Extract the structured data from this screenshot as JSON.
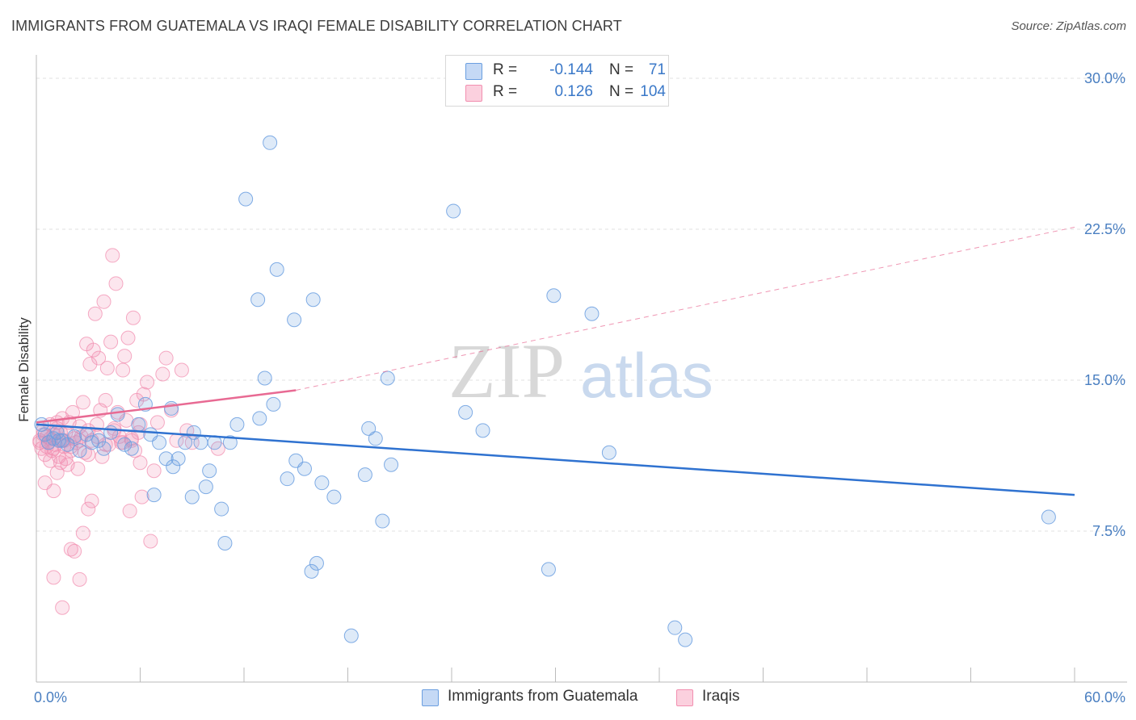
{
  "title": "IMMIGRANTS FROM GUATEMALA VS IRAQI FEMALE DISABILITY CORRELATION CHART",
  "source": "Source: ZipAtlas.com",
  "watermark": {
    "part1": "ZIP",
    "part2": "atlas"
  },
  "legend": {
    "rows": [
      {
        "r_label": "R =",
        "r_value": "-0.144",
        "n_label": "N =",
        "n_value": "71",
        "color": "#6b9fe0"
      },
      {
        "r_label": "R =",
        "r_value": "0.126",
        "n_label": "N =",
        "n_value": "104",
        "color": "#f28fb0"
      }
    ]
  },
  "bottom_legend": {
    "items": [
      {
        "label": "Immigrants from Guatemala",
        "color": "#6b9fe0"
      },
      {
        "label": "Iraqis",
        "color": "#f28fb0"
      }
    ]
  },
  "colors": {
    "blue": "#6b9fe0",
    "blue_line": "#2f72d0",
    "pink": "#f28fb0",
    "pink_line": "#e86a93",
    "axis_text": "#4a7fc1",
    "grid": "#e0e0e0"
  },
  "chart_data": {
    "type": "scatter",
    "ylabel": "Female Disability",
    "xlabel": "",
    "xlim": [
      0,
      60
    ],
    "ylim": [
      0,
      31
    ],
    "x_tick_labels": [
      {
        "value": 0,
        "label": "0.0%"
      },
      {
        "value": 60,
        "label": "60.0%"
      }
    ],
    "y_tick_labels": [
      {
        "value": 7.5,
        "label": "7.5%"
      },
      {
        "value": 15,
        "label": "15.0%"
      },
      {
        "value": 22.5,
        "label": "22.5%"
      },
      {
        "value": 30,
        "label": "30.0%"
      }
    ],
    "grid": true,
    "series": [
      {
        "name": "Immigrants from Guatemala",
        "r": -0.144,
        "n": 71,
        "trend": {
          "x": [
            0,
            60
          ],
          "y": [
            12.8,
            9.3
          ],
          "dashed_extension": false
        },
        "points": [
          [
            0.3,
            12.8
          ],
          [
            0.5,
            12.3
          ],
          [
            0.7,
            11.9
          ],
          [
            1.0,
            12.1
          ],
          [
            1.2,
            12.4
          ],
          [
            1.5,
            12.0
          ],
          [
            1.8,
            11.8
          ],
          [
            2.2,
            12.2
          ],
          [
            2.5,
            11.5
          ],
          [
            2.9,
            12.3
          ],
          [
            3.2,
            11.9
          ],
          [
            3.6,
            12.0
          ],
          [
            3.9,
            11.6
          ],
          [
            4.3,
            12.4
          ],
          [
            4.7,
            13.3
          ],
          [
            5.1,
            11.8
          ],
          [
            5.5,
            11.6
          ],
          [
            5.9,
            12.8
          ],
          [
            6.3,
            13.8
          ],
          [
            6.6,
            12.3
          ],
          [
            6.8,
            9.3
          ],
          [
            7.1,
            11.9
          ],
          [
            7.5,
            11.1
          ],
          [
            7.8,
            13.6
          ],
          [
            7.9,
            10.7
          ],
          [
            8.2,
            11.1
          ],
          [
            8.6,
            11.9
          ],
          [
            9.1,
            12.4
          ],
          [
            9.0,
            9.2
          ],
          [
            9.5,
            11.9
          ],
          [
            9.8,
            9.7
          ],
          [
            10.0,
            10.5
          ],
          [
            10.3,
            11.9
          ],
          [
            10.7,
            8.6
          ],
          [
            10.9,
            6.9
          ],
          [
            11.2,
            11.9
          ],
          [
            11.6,
            12.8
          ],
          [
            12.1,
            24.0
          ],
          [
            12.9,
            13.1
          ],
          [
            13.2,
            15.1
          ],
          [
            13.5,
            26.8
          ],
          [
            13.7,
            13.8
          ],
          [
            13.9,
            20.5
          ],
          [
            12.8,
            19.0
          ],
          [
            14.5,
            10.1
          ],
          [
            14.9,
            18.0
          ],
          [
            15.0,
            11.0
          ],
          [
            15.5,
            10.6
          ],
          [
            16.0,
            19.0
          ],
          [
            16.2,
            5.9
          ],
          [
            16.5,
            9.9
          ],
          [
            15.9,
            5.5
          ],
          [
            17.2,
            9.2
          ],
          [
            18.2,
            2.3
          ],
          [
            19.0,
            10.3
          ],
          [
            19.2,
            12.6
          ],
          [
            19.6,
            12.1
          ],
          [
            20.0,
            8.0
          ],
          [
            20.5,
            10.8
          ],
          [
            20.3,
            15.1
          ],
          [
            24.1,
            23.4
          ],
          [
            24.8,
            13.4
          ],
          [
            25.8,
            12.5
          ],
          [
            29.6,
            5.6
          ],
          [
            29.9,
            19.2
          ],
          [
            32.1,
            18.3
          ],
          [
            33.1,
            11.4
          ],
          [
            36.9,
            2.7
          ],
          [
            37.5,
            2.1
          ],
          [
            58.5,
            8.2
          ],
          [
            1.3,
            12.0
          ]
        ]
      },
      {
        "name": "Iraqis",
        "r": 0.126,
        "n": 104,
        "trend": {
          "x": [
            0,
            15
          ],
          "y": [
            12.9,
            14.5
          ],
          "dashed_x": [
            15,
            60
          ],
          "dashed_y": [
            14.5,
            22.6
          ]
        },
        "points": [
          [
            0.2,
            12.0
          ],
          [
            0.3,
            11.6
          ],
          [
            0.4,
            12.5
          ],
          [
            0.5,
            11.3
          ],
          [
            0.6,
            12.2
          ],
          [
            0.7,
            11.9
          ],
          [
            0.8,
            12.8
          ],
          [
            0.9,
            11.5
          ],
          [
            1.0,
            12.3
          ],
          [
            1.1,
            11.8
          ],
          [
            1.2,
            12.6
          ],
          [
            1.3,
            11.2
          ],
          [
            1.4,
            12.0
          ],
          [
            1.5,
            13.1
          ],
          [
            1.6,
            11.7
          ],
          [
            1.7,
            12.4
          ],
          [
            1.8,
            10.8
          ],
          [
            1.9,
            12.9
          ],
          [
            2.0,
            11.5
          ],
          [
            2.1,
            13.4
          ],
          [
            2.2,
            12.1
          ],
          [
            2.3,
            11.9
          ],
          [
            2.4,
            10.6
          ],
          [
            2.5,
            12.7
          ],
          [
            2.6,
            12.2
          ],
          [
            2.7,
            13.9
          ],
          [
            2.8,
            11.4
          ],
          [
            2.9,
            16.8
          ],
          [
            3.0,
            12.5
          ],
          [
            3.1,
            15.8
          ],
          [
            3.2,
            12.0
          ],
          [
            3.3,
            16.5
          ],
          [
            3.4,
            18.3
          ],
          [
            3.5,
            12.8
          ],
          [
            3.6,
            16.1
          ],
          [
            3.7,
            13.5
          ],
          [
            3.8,
            11.2
          ],
          [
            3.9,
            18.9
          ],
          [
            4.0,
            14.0
          ],
          [
            4.1,
            15.6
          ],
          [
            4.2,
            11.8
          ],
          [
            4.3,
            16.9
          ],
          [
            4.4,
            21.2
          ],
          [
            4.5,
            12.6
          ],
          [
            4.6,
            19.8
          ],
          [
            4.7,
            13.4
          ],
          [
            4.8,
            12.2
          ],
          [
            4.9,
            11.9
          ],
          [
            5.0,
            15.5
          ],
          [
            5.1,
            16.2
          ],
          [
            5.2,
            13.0
          ],
          [
            5.3,
            17.1
          ],
          [
            5.4,
            8.5
          ],
          [
            5.5,
            12.0
          ],
          [
            5.6,
            18.1
          ],
          [
            5.7,
            11.5
          ],
          [
            5.8,
            14.0
          ],
          [
            5.9,
            12.4
          ],
          [
            6.0,
            10.9
          ],
          [
            6.1,
            9.2
          ],
          [
            6.2,
            14.3
          ],
          [
            6.4,
            14.9
          ],
          [
            6.6,
            7.0
          ],
          [
            6.8,
            10.5
          ],
          [
            7.0,
            12.9
          ],
          [
            7.3,
            15.3
          ],
          [
            7.5,
            16.1
          ],
          [
            7.8,
            13.5
          ],
          [
            8.1,
            12.0
          ],
          [
            8.4,
            15.5
          ],
          [
            8.7,
            12.5
          ],
          [
            9.0,
            11.9
          ],
          [
            1.0,
            5.2
          ],
          [
            1.5,
            3.7
          ],
          [
            2.0,
            6.6
          ],
          [
            2.2,
            6.5
          ],
          [
            2.5,
            5.1
          ],
          [
            2.7,
            7.4
          ],
          [
            3.0,
            8.6
          ],
          [
            3.2,
            9.0
          ],
          [
            0.5,
            9.9
          ],
          [
            0.8,
            11.0
          ],
          [
            1.0,
            9.5
          ],
          [
            1.2,
            10.4
          ],
          [
            1.4,
            10.9
          ],
          [
            1.7,
            11.1
          ],
          [
            2.0,
            11.7
          ],
          [
            2.5,
            12.0
          ],
          [
            3.0,
            11.3
          ],
          [
            3.5,
            12.2
          ],
          [
            4.0,
            11.8
          ],
          [
            4.5,
            12.5
          ],
          [
            5.0,
            11.9
          ],
          [
            5.5,
            12.1
          ],
          [
            6.0,
            12.8
          ],
          [
            0.2,
            11.9
          ],
          [
            0.4,
            12.3
          ],
          [
            0.6,
            11.7
          ],
          [
            0.8,
            12.1
          ],
          [
            1.0,
            11.6
          ],
          [
            1.2,
            12.9
          ],
          [
            1.4,
            12.4
          ],
          [
            10.5,
            11.6
          ],
          [
            1.6,
            12.0
          ]
        ]
      }
    ]
  }
}
